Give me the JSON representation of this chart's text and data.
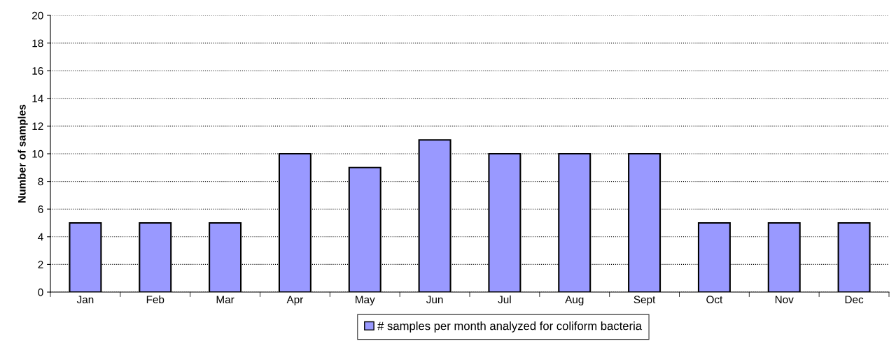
{
  "chart_data": {
    "type": "bar",
    "ylabel": "Number of samples",
    "categories": [
      "Jan",
      "Feb",
      "Mar",
      "Apr",
      "May",
      "Jun",
      "Jul",
      "Aug",
      "Sept",
      "Oct",
      "Nov",
      "Dec"
    ],
    "series": [
      {
        "name": "# samples per month analyzed for coliform bacteria",
        "color": "#9999ff",
        "values": [
          5,
          5,
          5,
          10,
          9,
          11,
          10,
          10,
          10,
          5,
          5,
          5
        ]
      }
    ],
    "ylim": [
      0,
      20
    ],
    "yticks": [
      0,
      2,
      4,
      6,
      8,
      10,
      12,
      14,
      16,
      18,
      20
    ],
    "grid": "y",
    "legend": "bottom"
  }
}
